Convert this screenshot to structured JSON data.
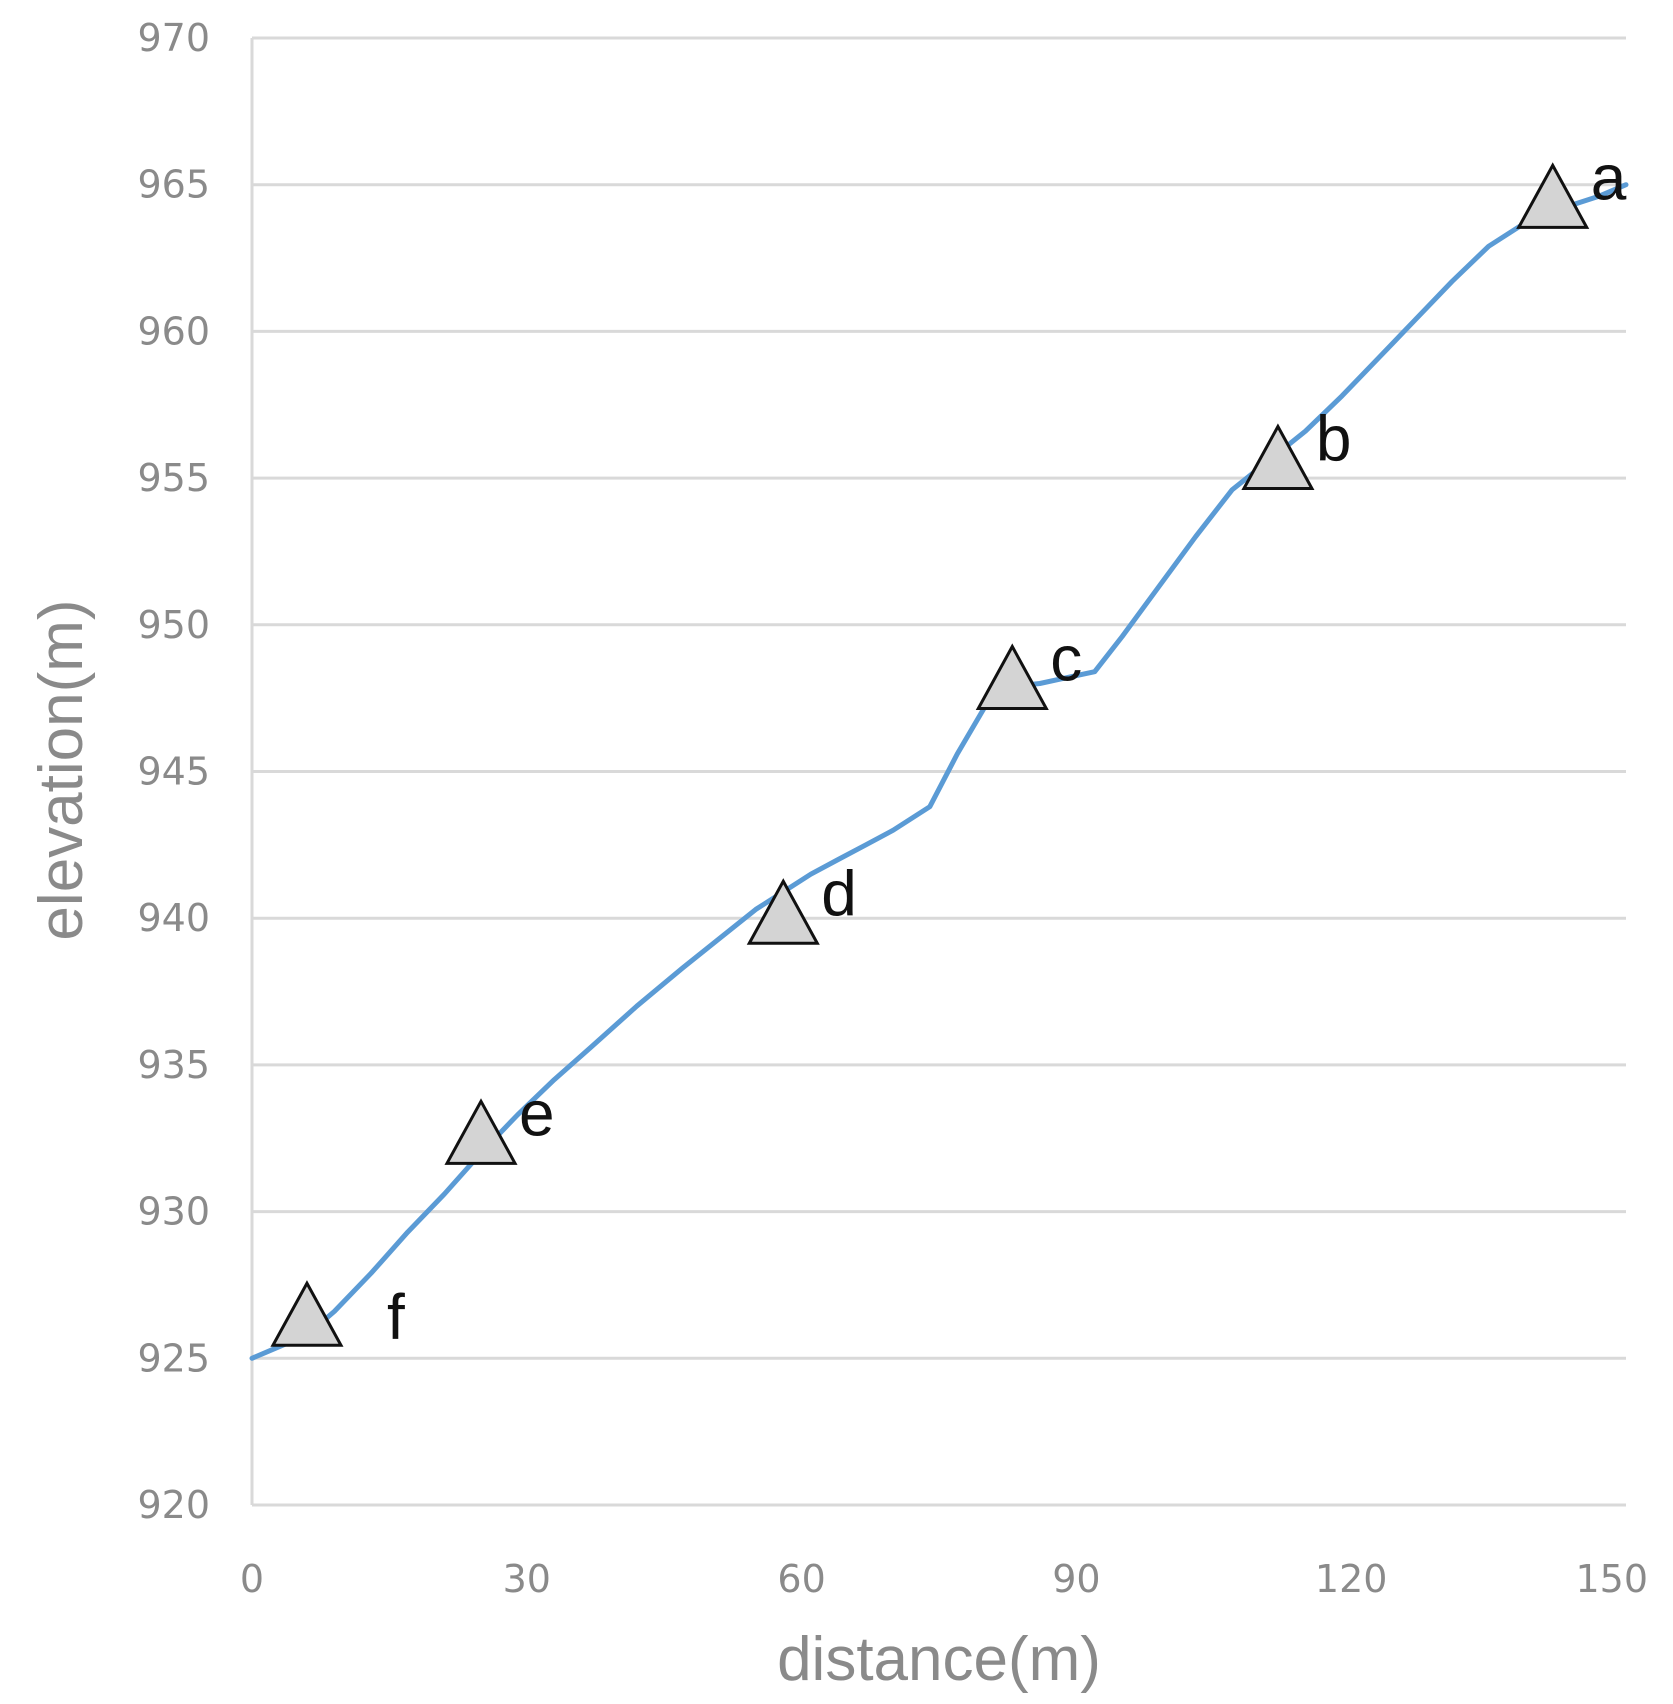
{
  "chart_data": {
    "type": "line",
    "title": "",
    "xlabel": "distance(m)",
    "ylabel": "elevation(m)",
    "xlim": [
      0,
      150
    ],
    "ylim": [
      920,
      970
    ],
    "xticks": [
      0,
      30,
      60,
      90,
      120,
      150
    ],
    "yticks": [
      920,
      925,
      930,
      935,
      940,
      945,
      950,
      955,
      960,
      965,
      970
    ],
    "grid": "horizontal",
    "series": [
      {
        "color": "#5b9bd5",
        "x": [
          0,
          3,
          6,
          9,
          13,
          17,
          21,
          25,
          29,
          33,
          37,
          42,
          47,
          51,
          55,
          58,
          61,
          64,
          67,
          70,
          74,
          77,
          80,
          83,
          86,
          89,
          92,
          95,
          99,
          103,
          107,
          111,
          115,
          119,
          123,
          127,
          131,
          135,
          139,
          143,
          147,
          150
        ],
        "y": [
          925.0,
          925.4,
          925.8,
          926.6,
          927.9,
          929.3,
          930.6,
          932.0,
          933.3,
          934.5,
          935.6,
          937.0,
          938.3,
          939.3,
          940.3,
          940.9,
          941.5,
          942.0,
          942.5,
          943.0,
          943.8,
          945.6,
          947.2,
          947.9,
          948.0,
          948.2,
          948.4,
          949.6,
          951.3,
          953.0,
          954.6,
          955.6,
          956.6,
          957.8,
          959.1,
          960.4,
          961.7,
          962.9,
          963.7,
          964.2,
          964.6,
          965.0
        ]
      }
    ],
    "markers": [
      {
        "label": "a",
        "x": 142,
        "y": 964.5
      },
      {
        "label": "b",
        "x": 112,
        "y": 955.6
      },
      {
        "label": "c",
        "x": 83,
        "y": 948.1
      },
      {
        "label": "d",
        "x": 58,
        "y": 940.1
      },
      {
        "label": "e",
        "x": 25,
        "y": 932.6
      },
      {
        "label": "f",
        "x": 6,
        "y": 926.4
      }
    ],
    "colors": {
      "line": "#5b9bd5",
      "marker_fill": "#d4d4d4",
      "marker_stroke": "#111111",
      "grid": "#d9d9d9",
      "axis_text": "#8a8a8a"
    }
  }
}
